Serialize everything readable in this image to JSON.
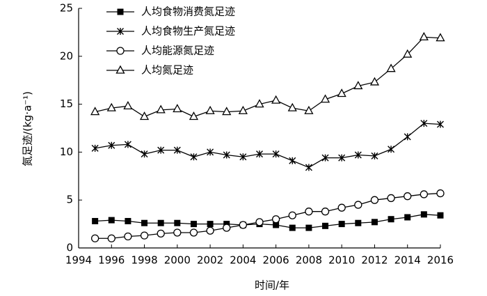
{
  "chart_data": {
    "type": "line",
    "x_label": "时间/年",
    "y_label": "氮足迹/(kg·a⁻¹)",
    "x": [
      1995,
      1996,
      1997,
      1998,
      1999,
      2000,
      2001,
      2002,
      2003,
      2004,
      2005,
      2006,
      2007,
      2008,
      2009,
      2010,
      2011,
      2012,
      2013,
      2014,
      2015,
      2016
    ],
    "series": [
      {
        "name": "人均食物消费氮足迹",
        "color": "#000000",
        "marker": "square",
        "values": [
          2.8,
          2.9,
          2.8,
          2.6,
          2.6,
          2.6,
          2.5,
          2.5,
          2.5,
          2.4,
          2.5,
          2.4,
          2.1,
          2.1,
          2.3,
          2.5,
          2.6,
          2.7,
          3.0,
          3.2,
          3.5,
          3.4
        ]
      },
      {
        "name": "人均食物生产氮足迹",
        "color": "#000000",
        "marker": "asterisk",
        "values": [
          10.4,
          10.7,
          10.8,
          9.8,
          10.2,
          10.2,
          9.5,
          10.0,
          9.7,
          9.5,
          9.8,
          9.8,
          9.1,
          8.4,
          9.4,
          9.4,
          9.7,
          9.6,
          10.3,
          11.6,
          13.0,
          12.9
        ]
      },
      {
        "name": "人均能源氮足迹",
        "color": "#000000",
        "marker": "circle",
        "values": [
          1.0,
          1.0,
          1.2,
          1.3,
          1.5,
          1.6,
          1.6,
          1.8,
          2.1,
          2.4,
          2.7,
          3.0,
          3.4,
          3.8,
          3.8,
          4.2,
          4.5,
          5.0,
          5.2,
          5.4,
          5.6,
          5.7
        ]
      },
      {
        "name": "人均氮足迹",
        "color": "#000000",
        "marker": "triangle",
        "values": [
          14.2,
          14.6,
          14.8,
          13.7,
          14.4,
          14.5,
          13.7,
          14.3,
          14.2,
          14.3,
          15.0,
          15.4,
          14.6,
          14.3,
          15.5,
          16.1,
          16.9,
          17.3,
          18.7,
          20.2,
          22.0,
          21.9
        ]
      }
    ],
    "xlim": [
      1994,
      2016
    ],
    "xticks": [
      1994,
      1996,
      1998,
      2000,
      2002,
      2004,
      2006,
      2008,
      2010,
      2012,
      2014,
      2016
    ],
    "ylim": [
      0,
      25
    ],
    "yticks": [
      0,
      5,
      10,
      15,
      20,
      25
    ],
    "legend": "top-left"
  }
}
